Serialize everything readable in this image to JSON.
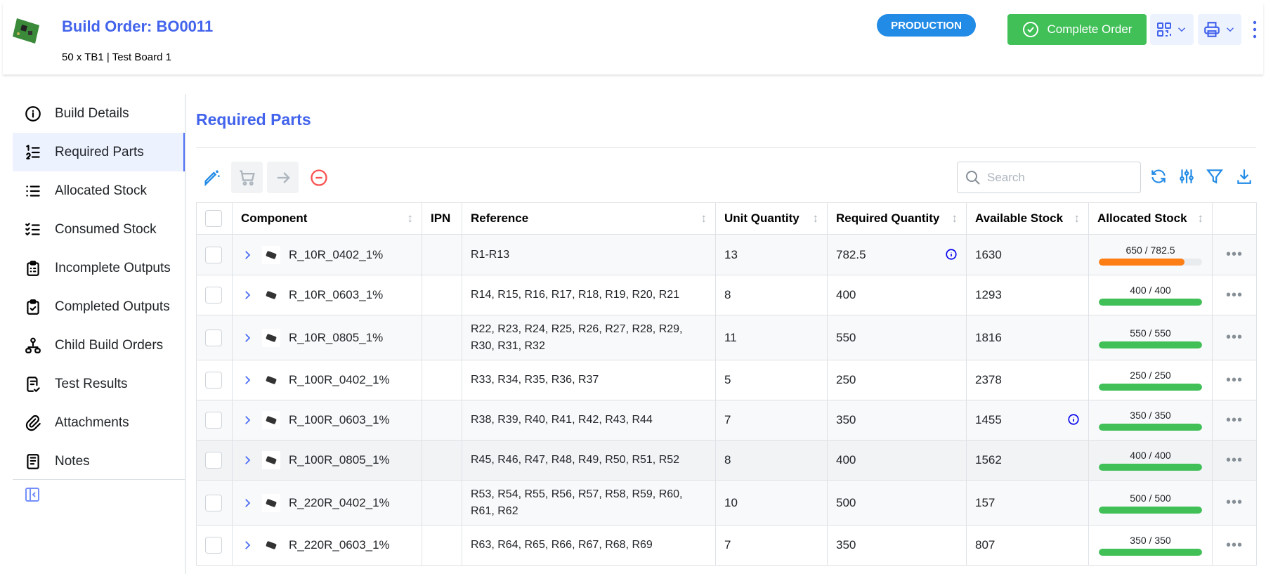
{
  "header": {
    "title": "Build Order: BO0011",
    "subtitle": "50 x TB1 | Test Board 1",
    "status": "PRODUCTION",
    "complete_label": "Complete Order"
  },
  "colors": {
    "accent": "#4263eb",
    "success": "#40c057",
    "status": "#228be6",
    "warning": "#fd7e14"
  },
  "sidebar": {
    "items": [
      {
        "label": "Build Details",
        "icon": "info-circle-icon"
      },
      {
        "label": "Required Parts",
        "icon": "list-numbers-icon",
        "active": true
      },
      {
        "label": "Allocated Stock",
        "icon": "list-icon"
      },
      {
        "label": "Consumed Stock",
        "icon": "list-check-icon"
      },
      {
        "label": "Incomplete Outputs",
        "icon": "clipboard-list-icon"
      },
      {
        "label": "Completed Outputs",
        "icon": "clipboard-check-icon"
      },
      {
        "label": "Child Build Orders",
        "icon": "hierarchy-icon"
      },
      {
        "label": "Test Results",
        "icon": "report-check-icon"
      },
      {
        "label": "Attachments",
        "icon": "paperclip-icon"
      },
      {
        "label": "Notes",
        "icon": "notes-icon"
      }
    ]
  },
  "main": {
    "title": "Required Parts",
    "search_placeholder": "Search",
    "columns": [
      "Component",
      "IPN",
      "Reference",
      "Unit Quantity",
      "Required Quantity",
      "Available Stock",
      "Allocated Stock"
    ],
    "rows": [
      {
        "component": "R_10R_0402_1%",
        "ipn": "",
        "reference": "R1-R13",
        "unit": "13",
        "required": "782.5",
        "required_info": true,
        "available": "1630",
        "allocated": "650 / 782.5",
        "alloc_pct": 83
      },
      {
        "component": "R_10R_0603_1%",
        "ipn": "",
        "reference": "R14, R15, R16, R17, R18, R19, R20, R21",
        "unit": "8",
        "required": "400",
        "available": "1293",
        "allocated": "400 / 400",
        "alloc_pct": 100
      },
      {
        "component": "R_10R_0805_1%",
        "ipn": "",
        "reference": "R22, R23, R24, R25, R26, R27, R28, R29, R30, R31, R32",
        "unit": "11",
        "required": "550",
        "available": "1816",
        "allocated": "550 / 550",
        "alloc_pct": 100
      },
      {
        "component": "R_100R_0402_1%",
        "ipn": "",
        "reference": "R33, R34, R35, R36, R37",
        "unit": "5",
        "required": "250",
        "available": "2378",
        "allocated": "250 / 250",
        "alloc_pct": 100
      },
      {
        "component": "R_100R_0603_1%",
        "ipn": "",
        "reference": "R38, R39, R40, R41, R42, R43, R44",
        "unit": "7",
        "required": "350",
        "available": "1455",
        "available_info": true,
        "allocated": "350 / 350",
        "alloc_pct": 100
      },
      {
        "component": "R_100R_0805_1%",
        "ipn": "",
        "reference": "R45, R46, R47, R48, R49, R50, R51, R52",
        "unit": "8",
        "required": "400",
        "available": "1562",
        "allocated": "400 / 400",
        "alloc_pct": 100
      },
      {
        "component": "R_220R_0402_1%",
        "ipn": "",
        "reference": "R53, R54, R55, R56, R57, R58, R59, R60, R61, R62",
        "unit": "10",
        "required": "500",
        "available": "157",
        "allocated": "500 / 500",
        "alloc_pct": 100
      },
      {
        "component": "R_220R_0603_1%",
        "ipn": "",
        "reference": "R63, R64, R65, R66, R67, R68, R69",
        "unit": "7",
        "required": "350",
        "available": "807",
        "allocated": "350 / 350",
        "alloc_pct": 100
      }
    ]
  }
}
